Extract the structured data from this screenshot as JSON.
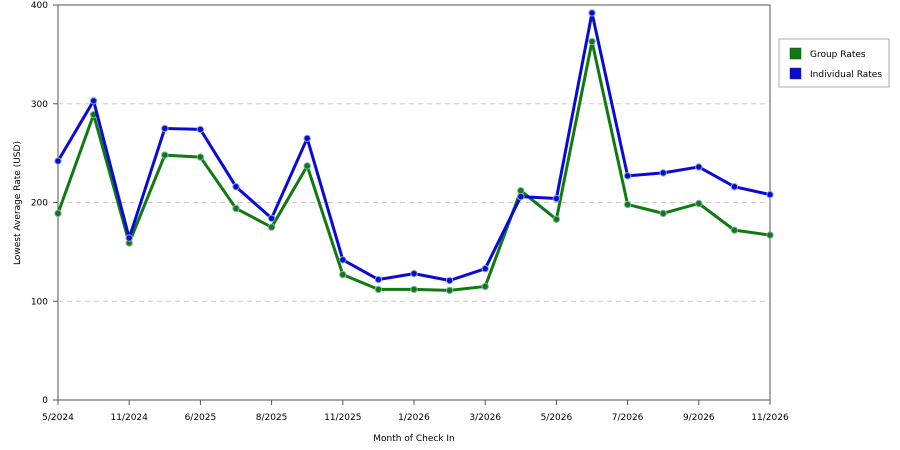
{
  "chart_data": {
    "type": "line",
    "x_label": "Month of Check In",
    "y_label": "Lowest Average Rate (USD)",
    "categories": [
      "5/2024",
      null,
      "11/2024",
      null,
      "6/2025",
      null,
      "8/2025",
      null,
      "11/2025",
      null,
      "1/2026",
      null,
      "3/2026",
      null,
      "5/2026",
      null,
      "7/2026",
      null,
      "9/2026",
      null,
      "11/2026"
    ],
    "series": [
      {
        "name": "Group Rates",
        "color": "#0f7a0f",
        "values": [
          189,
          289,
          159,
          248,
          246,
          194,
          175,
          237,
          127,
          112,
          112,
          111,
          115,
          212,
          183,
          363,
          198,
          189,
          199,
          172,
          167
        ]
      },
      {
        "name": "Individual Rates",
        "color": "#0a0ad8",
        "values": [
          242,
          303,
          164,
          275,
          274,
          216,
          184,
          265,
          142,
          122,
          128,
          121,
          133,
          206,
          204,
          392,
          227,
          230,
          236,
          216,
          208
        ]
      }
    ],
    "ylim": [
      0,
      400
    ],
    "yticks": [
      0,
      100,
      200,
      300,
      400
    ],
    "grid": true,
    "legend": "right"
  }
}
